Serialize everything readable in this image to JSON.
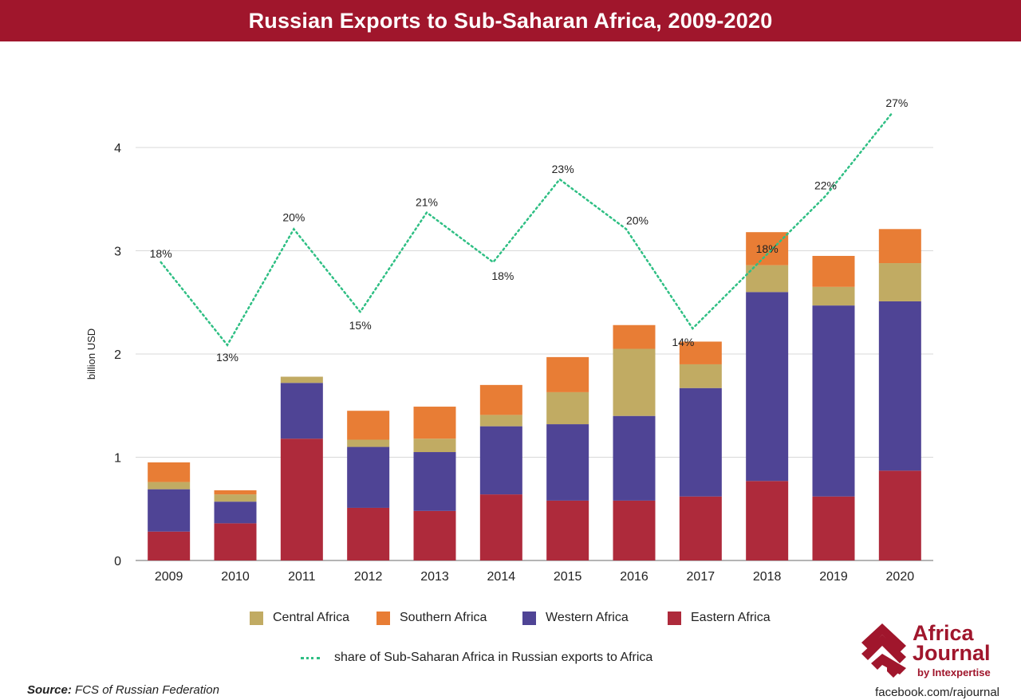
{
  "title": "Russian Exports to Sub-Saharan Africa, 2009-2020",
  "colors": {
    "title_bg": "#a0162c",
    "central": "#c1ab63",
    "southern": "#e87d35",
    "western": "#4f4495",
    "eastern": "#ae2a3b",
    "share_line": "#2fbf84",
    "grid": "#d9d9d9"
  },
  "chart_data": {
    "type": "bar",
    "stacked": true,
    "categories": [
      "2009",
      "2010",
      "2011",
      "2012",
      "2013",
      "2014",
      "2015",
      "2016",
      "2017",
      "2018",
      "2019",
      "2020"
    ],
    "ylabel": "billion USD",
    "ylim": [
      0,
      4.4
    ],
    "yticks": [
      0,
      1,
      2,
      3,
      4
    ],
    "grid": true,
    "series": [
      {
        "name": "Eastern Africa",
        "color": "#ae2a3b",
        "values": [
          0.28,
          0.36,
          1.18,
          0.51,
          0.48,
          0.64,
          0.58,
          0.58,
          0.62,
          0.77,
          0.62,
          0.87
        ]
      },
      {
        "name": "Western Africa",
        "color": "#4f4495",
        "values": [
          0.41,
          0.21,
          0.54,
          0.59,
          0.57,
          0.66,
          0.74,
          0.82,
          1.05,
          1.83,
          1.85,
          1.64
        ]
      },
      {
        "name": "Central Africa",
        "color": "#c1ab63",
        "values": [
          0.07,
          0.07,
          0.06,
          0.07,
          0.13,
          0.11,
          0.31,
          0.65,
          0.23,
          0.26,
          0.18,
          0.37
        ]
      },
      {
        "name": "Southern Africa",
        "color": "#e87d35",
        "values": [
          0.19,
          0.04,
          0.0,
          0.28,
          0.31,
          0.29,
          0.34,
          0.23,
          0.22,
          0.32,
          0.3,
          0.33
        ]
      }
    ],
    "share_line": {
      "name": "share of Sub-Saharan Africa in Russian exports to Africa",
      "values": [
        18,
        13,
        20,
        15,
        21,
        18,
        23,
        20,
        14,
        18,
        22,
        27
      ],
      "labels": [
        "18%",
        "13%",
        "20%",
        "15%",
        "21%",
        "18%",
        "23%",
        "20%",
        "14%",
        "18%",
        "22%",
        "27%"
      ],
      "style": "dotted"
    },
    "legend": [
      "Central Africa",
      "Southern Africa",
      "Western Africa",
      "Eastern Africa"
    ]
  },
  "source_label": "Source:",
  "source_text": "FCS of Russian Federation",
  "logo": {
    "line1": "Africa",
    "line2": "Journal",
    "sub": "by Intexpertise"
  },
  "footer_link": "facebook.com/rajournal"
}
